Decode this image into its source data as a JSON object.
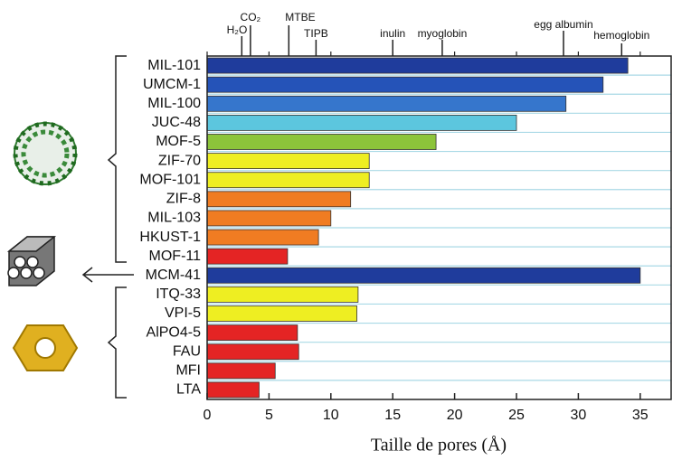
{
  "chart_data": {
    "type": "hbar",
    "x_label": "Taille de pores (Å)",
    "categories": [
      "MIL-101",
      "UMCM-1",
      "MIL-100",
      "JUC-48",
      "MOF-5",
      "ZIF-70",
      "MOF-101",
      "ZIF-8",
      "MIL-103",
      "HKUST-1",
      "MOF-11",
      "MCM-41",
      "ITQ-33",
      "VPI-5",
      "AlPO4-5",
      "FAU",
      "MFI",
      "LTA"
    ],
    "values": [
      34,
      32,
      29,
      25,
      18.5,
      13.1,
      13.1,
      11.6,
      10,
      9,
      6.5,
      35,
      12.2,
      12.1,
      7.3,
      7.4,
      5.5,
      4.2
    ],
    "colors": [
      "#1f3c9c",
      "#2553b8",
      "#3676cc",
      "#5cc6de",
      "#8cc43a",
      "#eeee22",
      "#eeee22",
      "#f07c22",
      "#f07c22",
      "#f07c22",
      "#e42424",
      "#1f3c9c",
      "#eeee22",
      "#eeee22",
      "#e42424",
      "#e42424",
      "#e42424",
      "#e42424"
    ],
    "xlim": [
      0,
      37.5
    ],
    "xticks": [
      0,
      5,
      10,
      15,
      20,
      25,
      30,
      35
    ],
    "grid": true,
    "grid_color": "#a9d9e6",
    "annotations": [
      {
        "label": "H₂O",
        "value": 2.8
      },
      {
        "label": "CO₂",
        "value": 3.5
      },
      {
        "label": "MTBE",
        "value": 6.6
      },
      {
        "label": "TIPB",
        "value": 8.8
      },
      {
        "label": "inulin",
        "value": 15
      },
      {
        "label": "myoglobin",
        "value": 19
      },
      {
        "label": "egg albumin",
        "value": 28.8
      },
      {
        "label": "hemoglobin",
        "value": 33.5
      }
    ]
  }
}
